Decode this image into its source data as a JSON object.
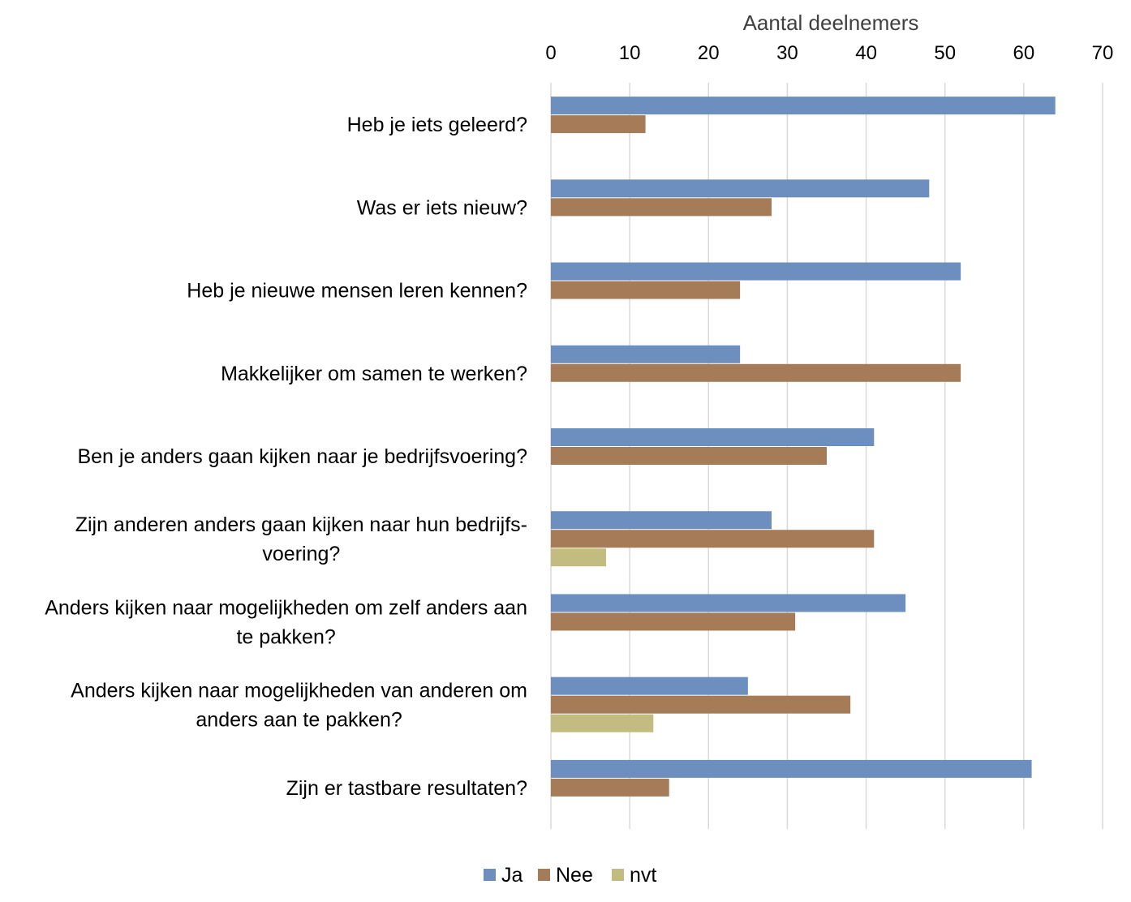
{
  "chart_data": {
    "type": "bar",
    "orientation": "horizontal",
    "xlabel": "Aantal deelnemers",
    "xlabel_position": "top",
    "xlim": [
      0,
      70
    ],
    "xticks": [
      0,
      10,
      20,
      30,
      40,
      50,
      60,
      70
    ],
    "grid": true,
    "legend_position": "bottom",
    "categories": [
      [
        "Heb je iets geleerd?"
      ],
      [
        "Was er iets nieuw?"
      ],
      [
        "Heb je nieuwe mensen leren kennen?"
      ],
      [
        "Makkelijker om samen te werken?"
      ],
      [
        "Ben je anders gaan kijken naar je bedrijfsvoering?"
      ],
      [
        "Zijn anderen anders gaan kijken naar hun bedrijfs-",
        "voering?"
      ],
      [
        "Anders kijken naar mogelijkheden om zelf anders aan",
        "te pakken?"
      ],
      [
        "Anders kijken naar mogelijkheden van anderen om",
        "anders aan te pakken?"
      ],
      [
        "Zijn er tastbare resultaten?"
      ]
    ],
    "series": [
      {
        "name": "Ja",
        "color": "#6d8fc0",
        "values": [
          64,
          48,
          52,
          24,
          41,
          28,
          45,
          25,
          61
        ]
      },
      {
        "name": "Nee",
        "color": "#a67b58",
        "values": [
          12,
          28,
          24,
          52,
          35,
          41,
          31,
          38,
          15
        ]
      },
      {
        "name": "nvt",
        "color": "#c2bc80",
        "values": [
          0,
          0,
          0,
          0,
          0,
          7,
          0,
          13,
          0
        ]
      }
    ]
  }
}
